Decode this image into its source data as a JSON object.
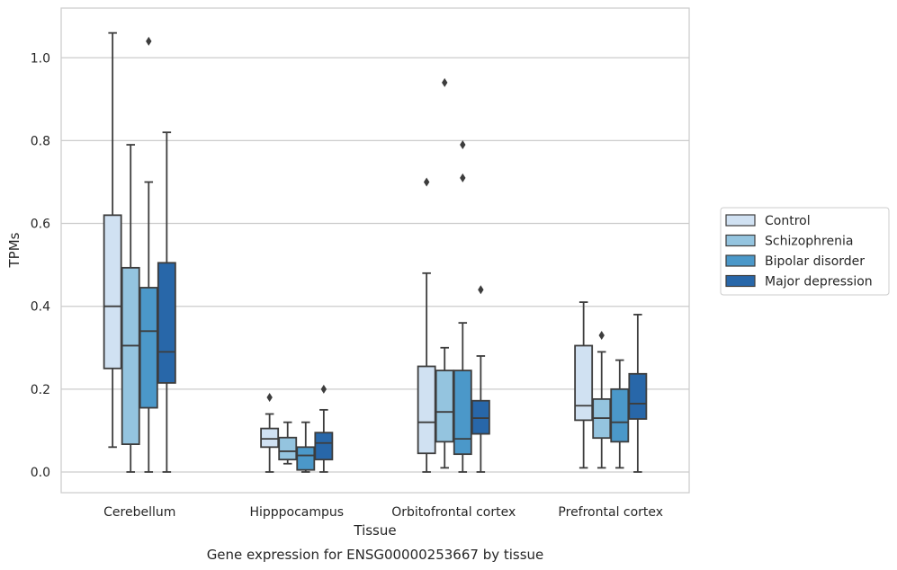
{
  "caption": "Gene expression for ENSG00000253667 by tissue",
  "chart_data": {
    "type": "boxplot",
    "xlabel": "Tissue",
    "ylabel": "TPMs",
    "ylim": [
      -0.05,
      1.12
    ],
    "yticks": [
      0.0,
      0.2,
      0.4,
      0.6,
      0.8,
      1.0
    ],
    "ytick_labels": [
      "0.0",
      "0.2",
      "0.4",
      "0.6",
      "0.8",
      "1.0"
    ],
    "grid": "horizontal",
    "legend_position": "right",
    "categories": [
      "Cerebellum",
      "Hipppocampus",
      "Orbitofrontal cortex",
      "Prefrontal cortex"
    ],
    "series": [
      {
        "name": "Control",
        "color": "#d0e1f2",
        "boxes": [
          {
            "whislo": 0.06,
            "q1": 0.25,
            "med": 0.4,
            "q3": 0.62,
            "whishi": 1.06,
            "fliers": []
          },
          {
            "whislo": 0.0,
            "q1": 0.06,
            "med": 0.08,
            "q3": 0.105,
            "whishi": 0.14,
            "fliers": [
              0.18
            ]
          },
          {
            "whislo": 0.0,
            "q1": 0.045,
            "med": 0.12,
            "q3": 0.255,
            "whishi": 0.48,
            "fliers": [
              0.7
            ]
          },
          {
            "whislo": 0.01,
            "q1": 0.125,
            "med": 0.16,
            "q3": 0.305,
            "whishi": 0.41,
            "fliers": []
          }
        ]
      },
      {
        "name": "Schizophrenia",
        "color": "#94c4df",
        "boxes": [
          {
            "whislo": 0.0,
            "q1": 0.067,
            "med": 0.305,
            "q3": 0.493,
            "whishi": 0.79,
            "fliers": []
          },
          {
            "whislo": 0.02,
            "q1": 0.03,
            "med": 0.05,
            "q3": 0.083,
            "whishi": 0.12,
            "fliers": []
          },
          {
            "whislo": 0.01,
            "q1": 0.073,
            "med": 0.145,
            "q3": 0.245,
            "whishi": 0.3,
            "fliers": [
              0.94
            ]
          },
          {
            "whislo": 0.01,
            "q1": 0.082,
            "med": 0.13,
            "q3": 0.176,
            "whishi": 0.29,
            "fliers": [
              0.33
            ]
          }
        ]
      },
      {
        "name": "Bipolar disorder",
        "color": "#4b98c9",
        "boxes": [
          {
            "whislo": 0.0,
            "q1": 0.155,
            "med": 0.34,
            "q3": 0.445,
            "whishi": 0.7,
            "fliers": [
              1.04
            ]
          },
          {
            "whislo": 0.0,
            "q1": 0.005,
            "med": 0.04,
            "q3": 0.06,
            "whishi": 0.12,
            "fliers": []
          },
          {
            "whislo": 0.0,
            "q1": 0.043,
            "med": 0.08,
            "q3": 0.245,
            "whishi": 0.36,
            "fliers": [
              0.71,
              0.79
            ]
          },
          {
            "whislo": 0.01,
            "q1": 0.073,
            "med": 0.12,
            "q3": 0.2,
            "whishi": 0.27,
            "fliers": []
          }
        ]
      },
      {
        "name": "Major depression",
        "color": "#2867a9",
        "boxes": [
          {
            "whislo": 0.0,
            "q1": 0.215,
            "med": 0.29,
            "q3": 0.505,
            "whishi": 0.82,
            "fliers": []
          },
          {
            "whislo": 0.0,
            "q1": 0.03,
            "med": 0.07,
            "q3": 0.095,
            "whishi": 0.15,
            "fliers": [
              0.2
            ]
          },
          {
            "whislo": 0.0,
            "q1": 0.092,
            "med": 0.13,
            "q3": 0.172,
            "whishi": 0.28,
            "fliers": [
              0.44
            ]
          },
          {
            "whislo": 0.0,
            "q1": 0.128,
            "med": 0.165,
            "q3": 0.237,
            "whishi": 0.38,
            "fliers": []
          }
        ]
      }
    ]
  }
}
